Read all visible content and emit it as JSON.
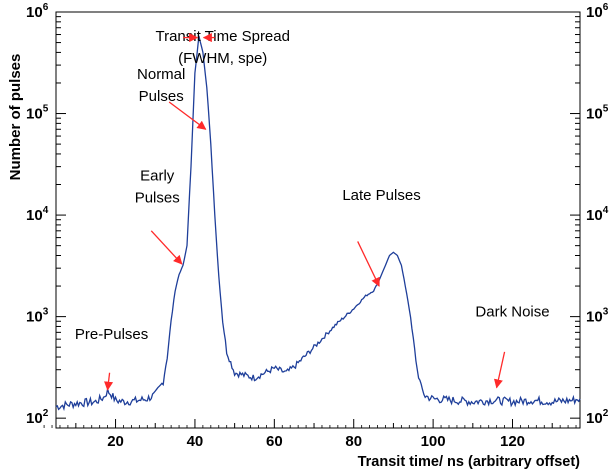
{
  "chart_data": {
    "type": "line",
    "title": "",
    "xlabel": "Transit time/ ns (arbitrary offset)",
    "ylabel": "Number of pulses",
    "xlim": [
      5,
      137
    ],
    "ylim": [
      80,
      1000000
    ],
    "y_scale": "log",
    "grid": false,
    "line_color": "#1f3f9a",
    "annotation_color": "#ff2a2a",
    "x_ticks": [
      20,
      40,
      60,
      80,
      100,
      120
    ],
    "x_tick_labels": [
      "20",
      "40",
      "60",
      "80",
      "100",
      "120"
    ],
    "y_ticks": [
      100,
      1000,
      10000,
      100000,
      1000000
    ],
    "y_tick_bases": [
      "10",
      "10",
      "10",
      "10",
      "10"
    ],
    "y_tick_exponents": [
      "2",
      "3",
      "4",
      "5",
      "6"
    ],
    "series": [
      {
        "x": [
          5,
          10,
          15,
          17,
          18,
          19,
          20,
          22,
          25,
          28,
          30,
          32,
          33,
          34,
          35,
          36,
          37,
          38,
          39,
          40,
          41,
          42,
          43,
          44,
          45,
          46,
          47,
          48,
          50,
          55,
          60,
          63,
          65,
          70,
          75,
          80,
          83,
          85,
          86,
          87,
          88,
          89,
          90,
          91,
          92,
          93,
          94,
          95,
          96,
          97,
          98,
          100,
          105,
          110,
          115,
          120,
          125,
          130,
          135,
          137
        ],
        "y": [
          130,
          140,
          145,
          160,
          185,
          170,
          150,
          145,
          148,
          155,
          170,
          230,
          400,
          900,
          1800,
          2600,
          3200,
          5000,
          30000,
          250000,
          580000,
          400000,
          180000,
          50000,
          10000,
          2500,
          900,
          450,
          280,
          250,
          310,
          280,
          320,
          500,
          800,
          1200,
          1600,
          1800,
          2100,
          2600,
          3200,
          4000,
          4300,
          4000,
          3200,
          2000,
          1200,
          600,
          300,
          200,
          165,
          155,
          150,
          145,
          150,
          145,
          150,
          145,
          150,
          155
        ]
      }
    ],
    "annotations": [
      {
        "lines": [
          "Transit Time Spread",
          "(FWHM, spe)"
        ],
        "x": 47,
        "y": 520000
      },
      {
        "lines": [
          "Normal",
          "Pulses"
        ],
        "x": 31.5,
        "y": 220000
      },
      {
        "lines": [
          "Early",
          "Pulses"
        ],
        "x": 30.5,
        "y": 22000
      },
      {
        "lines": [
          "Late Pulses"
        ],
        "x": 87,
        "y": 14000
      },
      {
        "lines": [
          "Dark Noise"
        ],
        "x": 120,
        "y": 1000
      },
      {
        "lines": [
          "Pre-Pulses"
        ],
        "x": 19,
        "y": 600
      }
    ],
    "arrows": [
      {
        "from": [
          33.5,
          130000
        ],
        "to": [
          42.7,
          70000
        ]
      },
      {
        "from": [
          29,
          7000
        ],
        "to": [
          36.7,
          3300
        ]
      },
      {
        "from": [
          81,
          5500
        ],
        "to": [
          86.4,
          2000
        ]
      },
      {
        "from": [
          18.5,
          280
        ],
        "to": [
          18,
          190
        ]
      },
      {
        "from": [
          118,
          450
        ],
        "to": [
          116,
          200
        ]
      }
    ],
    "tts_arrows": [
      {
        "from": [
          37,
          560000
        ],
        "to": [
          40.6,
          560000
        ]
      },
      {
        "from": [
          45,
          560000
        ],
        "to": [
          42.2,
          560000
        ]
      }
    ]
  }
}
